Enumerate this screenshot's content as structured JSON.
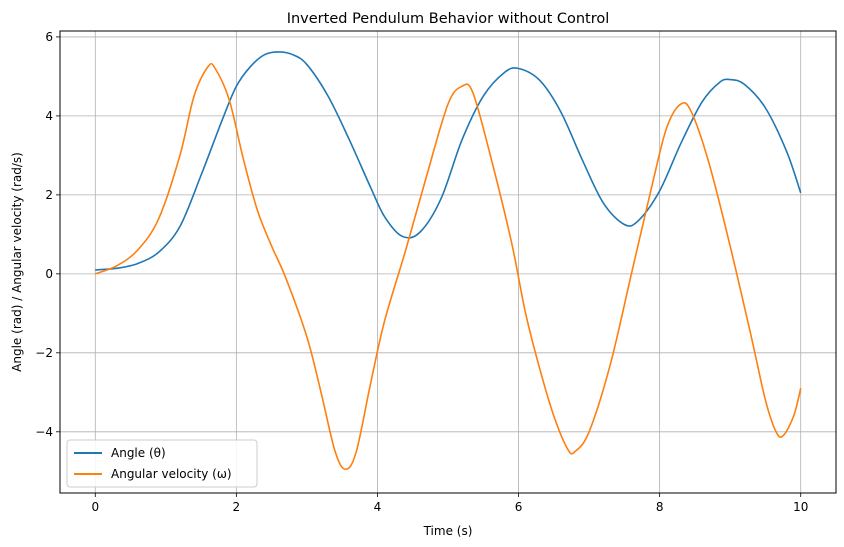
{
  "chart_data": {
    "type": "line",
    "title": "Inverted Pendulum Behavior without Control",
    "xlabel": "Time (s)",
    "ylabel": "Angle (rad) / Angular velocity (rad/s)",
    "xlim": [
      -0.5,
      10.5
    ],
    "ylim": [
      -5.55,
      6.15
    ],
    "xticks": [
      0,
      2,
      4,
      6,
      8,
      10
    ],
    "xtick_labels": [
      "0",
      "2",
      "4",
      "6",
      "8",
      "10"
    ],
    "yticks": [
      -4,
      -2,
      0,
      2,
      4,
      6
    ],
    "ytick_labels": [
      "−4",
      "−2",
      "0",
      "2",
      "4",
      "6"
    ],
    "grid": true,
    "legend_position": "lower-left",
    "series": [
      {
        "name": "Angle (θ)",
        "color": "#1f77b4",
        "points": [
          [
            0,
            0.1
          ],
          [
            0.3,
            0.14
          ],
          [
            0.6,
            0.26
          ],
          [
            0.9,
            0.55
          ],
          [
            1.2,
            1.2
          ],
          [
            1.5,
            2.5
          ],
          [
            1.8,
            3.9
          ],
          [
            2.0,
            4.75
          ],
          [
            2.2,
            5.25
          ],
          [
            2.4,
            5.55
          ],
          [
            2.6,
            5.62
          ],
          [
            2.8,
            5.55
          ],
          [
            3.0,
            5.3
          ],
          [
            3.3,
            4.5
          ],
          [
            3.6,
            3.4
          ],
          [
            3.9,
            2.2
          ],
          [
            4.1,
            1.45
          ],
          [
            4.35,
            0.95
          ],
          [
            4.6,
            1.05
          ],
          [
            4.9,
            1.9
          ],
          [
            5.2,
            3.4
          ],
          [
            5.5,
            4.5
          ],
          [
            5.8,
            5.1
          ],
          [
            6.0,
            5.2
          ],
          [
            6.3,
            4.9
          ],
          [
            6.6,
            4.1
          ],
          [
            6.9,
            2.9
          ],
          [
            7.2,
            1.8
          ],
          [
            7.5,
            1.25
          ],
          [
            7.7,
            1.35
          ],
          [
            8.0,
            2.1
          ],
          [
            8.3,
            3.3
          ],
          [
            8.6,
            4.35
          ],
          [
            8.85,
            4.85
          ],
          [
            9.0,
            4.92
          ],
          [
            9.2,
            4.8
          ],
          [
            9.5,
            4.2
          ],
          [
            9.8,
            3.1
          ],
          [
            10.0,
            2.05
          ]
        ]
      },
      {
        "name": "Angular velocity (ω)",
        "color": "#ff7f0e",
        "points": [
          [
            0,
            0.0
          ],
          [
            0.3,
            0.2
          ],
          [
            0.6,
            0.6
          ],
          [
            0.9,
            1.4
          ],
          [
            1.2,
            3.0
          ],
          [
            1.4,
            4.5
          ],
          [
            1.6,
            5.25
          ],
          [
            1.7,
            5.2
          ],
          [
            1.9,
            4.4
          ],
          [
            2.1,
            2.9
          ],
          [
            2.3,
            1.6
          ],
          [
            2.5,
            0.7
          ],
          [
            2.7,
            -0.1
          ],
          [
            3.0,
            -1.6
          ],
          [
            3.2,
            -3.0
          ],
          [
            3.4,
            -4.5
          ],
          [
            3.55,
            -4.95
          ],
          [
            3.7,
            -4.5
          ],
          [
            3.9,
            -2.8
          ],
          [
            4.1,
            -1.2
          ],
          [
            4.4,
            0.6
          ],
          [
            4.7,
            2.5
          ],
          [
            5.0,
            4.3
          ],
          [
            5.2,
            4.75
          ],
          [
            5.35,
            4.6
          ],
          [
            5.6,
            3.0
          ],
          [
            5.9,
            0.8
          ],
          [
            6.1,
            -1.0
          ],
          [
            6.3,
            -2.4
          ],
          [
            6.5,
            -3.6
          ],
          [
            6.7,
            -4.45
          ],
          [
            6.8,
            -4.5
          ],
          [
            7.0,
            -4.0
          ],
          [
            7.3,
            -2.3
          ],
          [
            7.6,
            0.0
          ],
          [
            7.9,
            2.3
          ],
          [
            8.1,
            3.7
          ],
          [
            8.3,
            4.3
          ],
          [
            8.45,
            4.1
          ],
          [
            8.7,
            2.8
          ],
          [
            9.0,
            0.7
          ],
          [
            9.3,
            -1.6
          ],
          [
            9.5,
            -3.2
          ],
          [
            9.65,
            -4.0
          ],
          [
            9.75,
            -4.1
          ],
          [
            9.9,
            -3.6
          ],
          [
            10.0,
            -2.9
          ]
        ]
      }
    ]
  }
}
